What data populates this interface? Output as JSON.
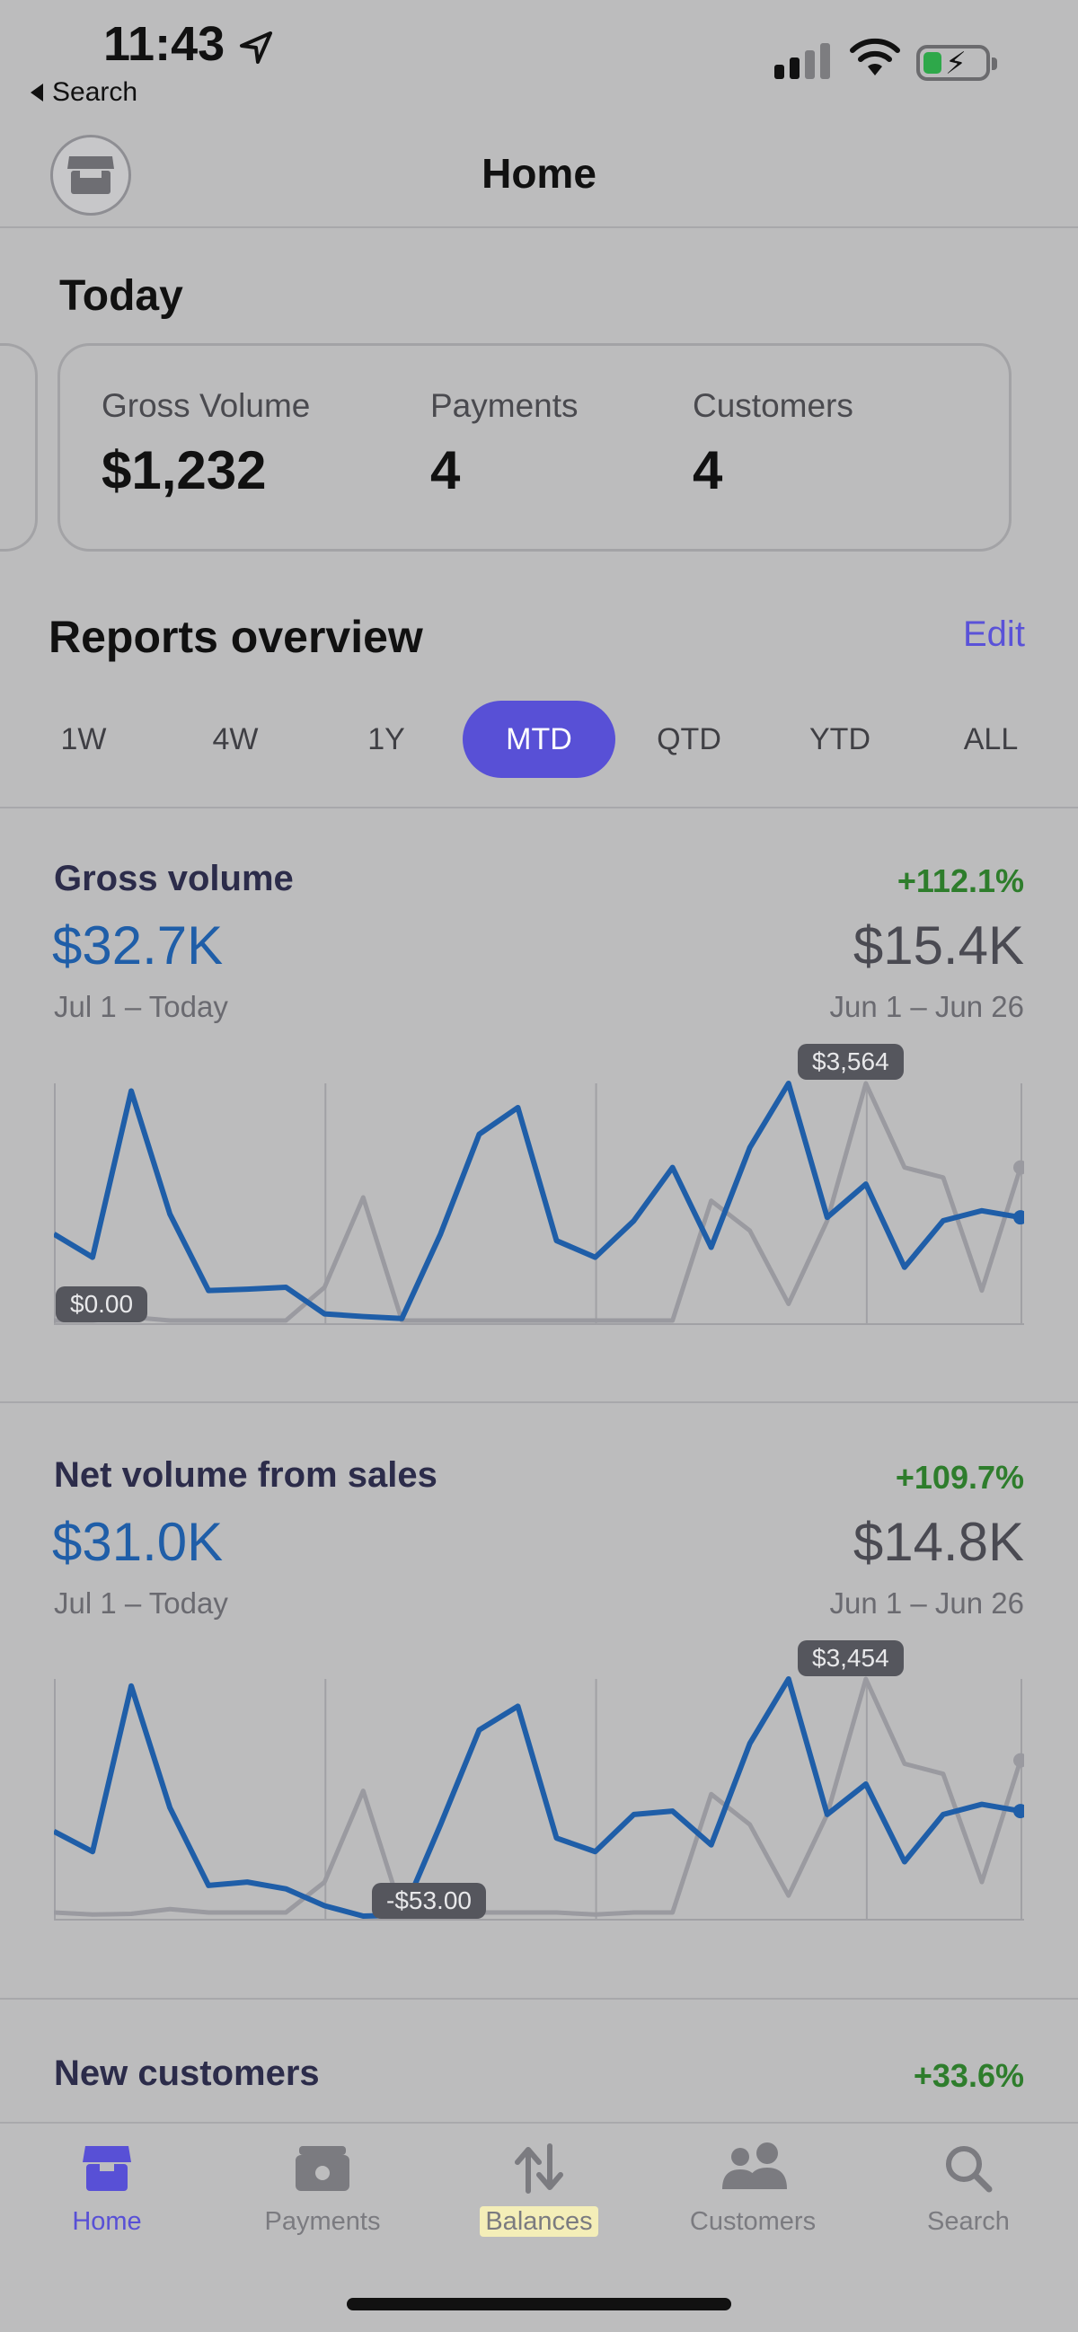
{
  "status_bar": {
    "time": "11:43",
    "back_label": "Search"
  },
  "header": {
    "title": "Home"
  },
  "today": {
    "title": "Today",
    "metrics": [
      {
        "label": "Gross Volume",
        "value": "$1,232"
      },
      {
        "label": "Payments",
        "value": "4"
      },
      {
        "label": "Customers",
        "value": "4"
      }
    ]
  },
  "reports": {
    "title": "Reports overview",
    "edit_label": "Edit",
    "ranges": [
      "1W",
      "4W",
      "1Y",
      "MTD",
      "QTD",
      "YTD",
      "ALL"
    ],
    "active_range": "MTD"
  },
  "sections": [
    {
      "title": "Gross volume",
      "change": "+112.1%",
      "value": "$32.7K",
      "range": "Jul 1 – Today",
      "prev_value": "$15.4K",
      "prev_range": "Jun 1 – Jun 26",
      "max_label": "$3,564",
      "min_label": "$0.00"
    },
    {
      "title": "Net volume from sales",
      "change": "+109.7%",
      "value": "$31.0K",
      "range": "Jul 1 – Today",
      "prev_value": "$14.8K",
      "prev_range": "Jun 1 – Jun 26",
      "max_label": "$3,454",
      "min_label": "-$53.00"
    },
    {
      "title": "New customers",
      "change": "+33.6%"
    }
  ],
  "chart_data": [
    {
      "type": "line",
      "title": "Gross volume",
      "series": [
        {
          "values": [
            1300,
            950,
            3450,
            1600,
            450,
            470,
            500,
            100,
            60,
            30,
            1300,
            2800,
            3200,
            1200,
            950,
            1500,
            2300,
            1100,
            2600,
            3564,
            1550,
            2050,
            800,
            1500,
            1650,
            1550
          ]
        },
        {
          "values": [
            0,
            0,
            50,
            0,
            0,
            0,
            0,
            500,
            1850,
            0,
            0,
            0,
            0,
            0,
            0,
            0,
            0,
            1800,
            1350,
            250,
            1500,
            3564,
            2300,
            2150,
            450,
            2300
          ]
        }
      ],
      "ylim": [
        0,
        3564
      ],
      "colors": [
        "#1f5ea8",
        "#9a9aa0"
      ]
    },
    {
      "type": "line",
      "title": "Net volume from sales",
      "series": [
        {
          "values": [
            1200,
            900,
            3350,
            1550,
            400,
            450,
            350,
            100,
            -53,
            -40,
            1300,
            2700,
            3050,
            1100,
            900,
            1450,
            1500,
            1000,
            2500,
            3454,
            1450,
            1900,
            750,
            1450,
            1600,
            1500
          ]
        },
        {
          "values": [
            0,
            -30,
            -20,
            50,
            0,
            0,
            0,
            450,
            1800,
            0,
            -20,
            0,
            0,
            0,
            -30,
            0,
            0,
            1750,
            1300,
            250,
            1450,
            3454,
            2200,
            2050,
            450,
            2250
          ]
        }
      ],
      "ylim": [
        -53,
        3454
      ],
      "colors": [
        "#1f5ea8",
        "#9a9aa0"
      ]
    }
  ],
  "tabbar": {
    "items": [
      {
        "label": "Home",
        "icon": "store-icon"
      },
      {
        "label": "Payments",
        "icon": "wallet-icon"
      },
      {
        "label": "Balances",
        "icon": "transfer-arrows-icon"
      },
      {
        "label": "Customers",
        "icon": "people-icon"
      },
      {
        "label": "Search",
        "icon": "search-icon"
      }
    ],
    "active": "Home"
  }
}
